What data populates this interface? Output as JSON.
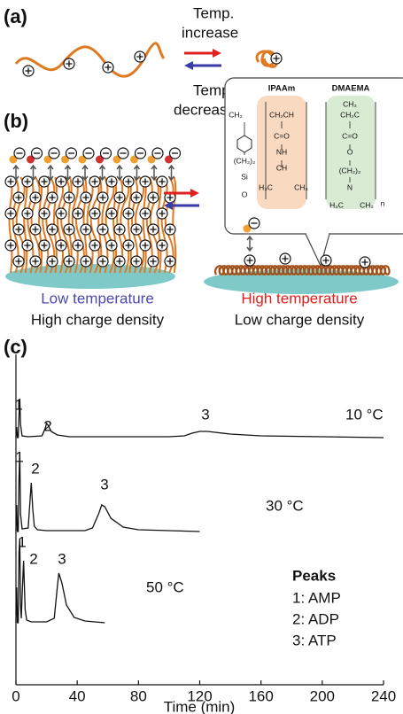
{
  "panel_a": {
    "label": "(a)",
    "temp_up": [
      "Temp.",
      "increase"
    ],
    "temp_down": [
      "Temp.",
      "decrease"
    ]
  },
  "panel_b": {
    "label": "(b)",
    "structure": [
      "IPAAm",
      "DMAEMA",
      "CH₂",
      "CH₂CH",
      "CH₃",
      "CH₂C",
      "C=O",
      "C=O",
      "NH",
      "O",
      "CH",
      "(CH₂)₂",
      "H₃C",
      "CH₃",
      "N",
      "H₃C",
      "CH₃",
      "n",
      "(CH₂)₂",
      "Si",
      "O"
    ],
    "low_temp": "Low temperature",
    "high_density": "High charge density",
    "high_temp": "High temperature",
    "low_density": "Low charge density"
  },
  "chart_data": {
    "type": "line",
    "panel_label": "(c)",
    "x_label": "Time (min)",
    "xlim": [
      0,
      240
    ],
    "xticks": [
      0,
      40,
      80,
      120,
      160,
      200,
      240
    ],
    "series": [
      {
        "name": "10 °C",
        "color": "#111111",
        "peak_labels": [
          "1",
          "2",
          "3"
        ],
        "x": [
          0,
          0.5,
          1,
          1.5,
          2,
          2.5,
          3,
          4,
          8,
          17,
          19,
          20,
          21,
          23,
          27,
          35,
          100,
          110,
          115,
          120,
          125,
          130,
          140,
          160,
          200,
          240
        ],
        "values": [
          0,
          12,
          0,
          0,
          25,
          44,
          15,
          2,
          1,
          2,
          10,
          16,
          14,
          7,
          3,
          1,
          1,
          2,
          5,
          7,
          7,
          6,
          4,
          2,
          1,
          0
        ]
      },
      {
        "name": "30 °C",
        "color": "#111111",
        "peak_labels": [
          "1",
          "2",
          "3"
        ],
        "x": [
          0,
          0.5,
          1,
          1.5,
          2,
          2.5,
          3,
          4,
          8,
          9,
          10,
          11,
          12,
          14,
          20,
          45,
          50,
          54,
          56,
          58,
          62,
          70,
          80,
          100,
          120
        ],
        "values": [
          0,
          30,
          0,
          0,
          60,
          90,
          20,
          3,
          4,
          30,
          55,
          25,
          6,
          2,
          1,
          1,
          4,
          20,
          30,
          28,
          15,
          5,
          2,
          1,
          0
        ]
      },
      {
        "name": "50 °C",
        "color": "#111111",
        "peak_labels": [
          "1",
          "2",
          "3"
        ],
        "x": [
          0,
          0.5,
          1,
          1.5,
          2,
          2.5,
          3,
          3.5,
          4,
          5,
          6,
          7,
          10,
          20,
          25,
          27,
          28,
          30,
          33,
          38,
          45,
          58
        ],
        "values": [
          0,
          40,
          0,
          0,
          80,
          95,
          20,
          5,
          30,
          70,
          15,
          3,
          1,
          1,
          5,
          40,
          56,
          45,
          20,
          6,
          2,
          0
        ]
      }
    ],
    "legend_title": "Peaks",
    "legend": [
      "1: AMP",
      "2: ADP",
      "3: ATP"
    ]
  }
}
